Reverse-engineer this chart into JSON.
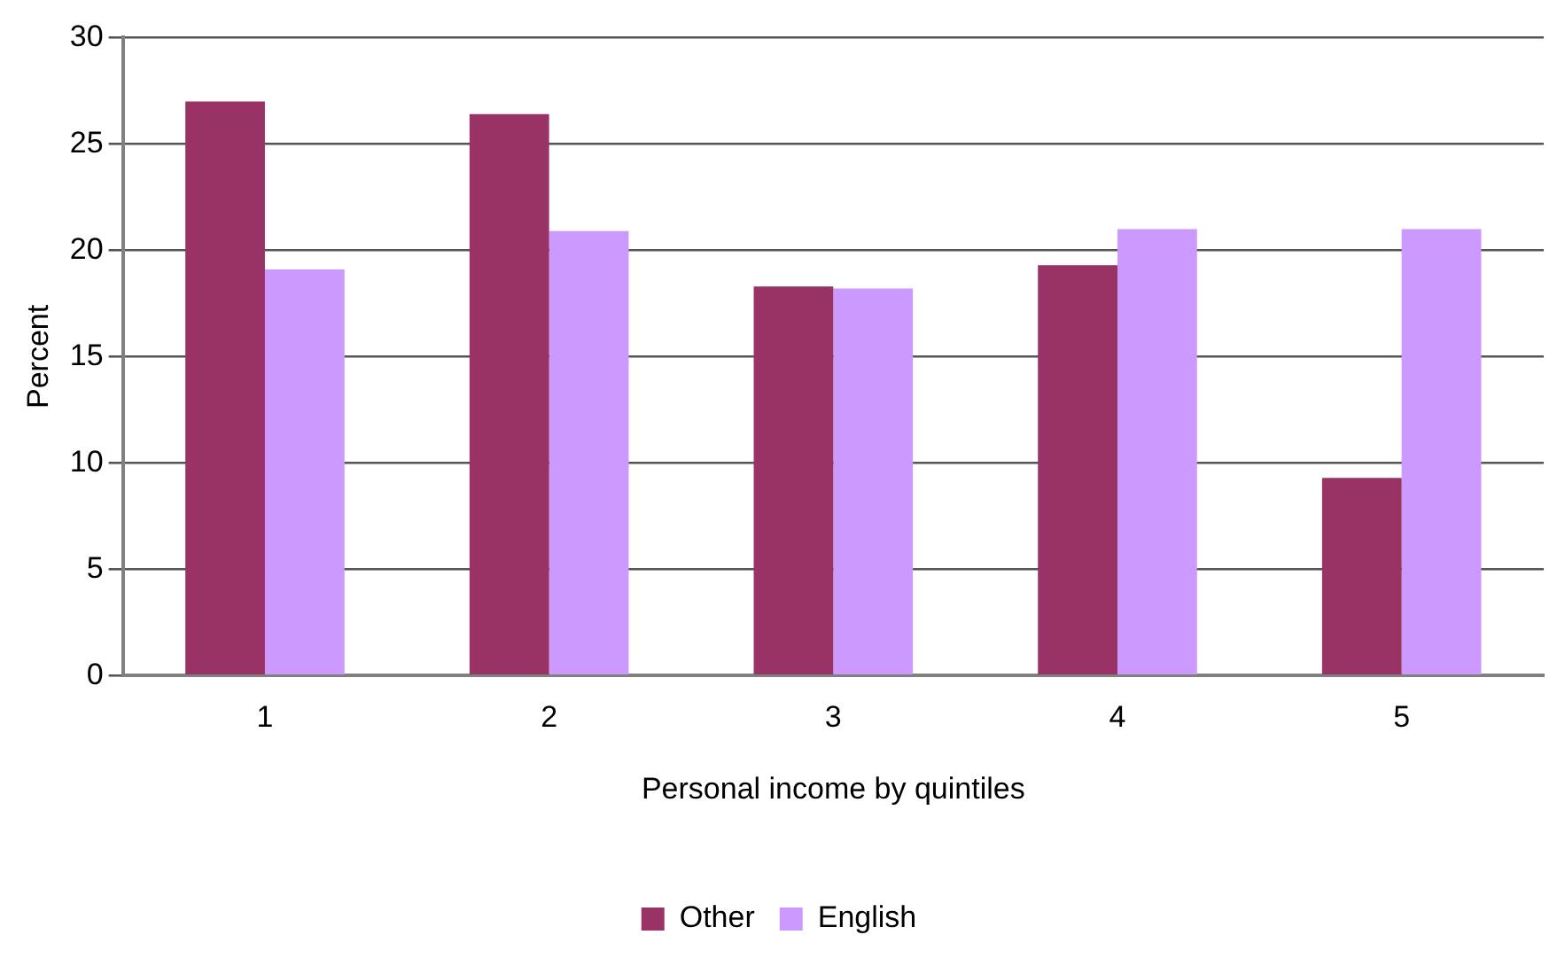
{
  "chart_data": {
    "type": "bar",
    "xlabel": "Personal income by quintiles",
    "ylabel": "Percent",
    "categories": [
      "1",
      "2",
      "3",
      "4",
      "5"
    ],
    "series": [
      {
        "name": "Other",
        "color": "#993366",
        "values": [
          27.0,
          26.4,
          18.3,
          19.3,
          9.3
        ]
      },
      {
        "name": "English",
        "color": "#cc99ff",
        "values": [
          19.1,
          20.9,
          18.2,
          21.0,
          21.0
        ]
      }
    ],
    "ylim": [
      0,
      30
    ],
    "yticks": [
      0,
      5,
      10,
      15,
      20,
      25,
      30
    ],
    "grid": "y",
    "legend": "bottom"
  }
}
